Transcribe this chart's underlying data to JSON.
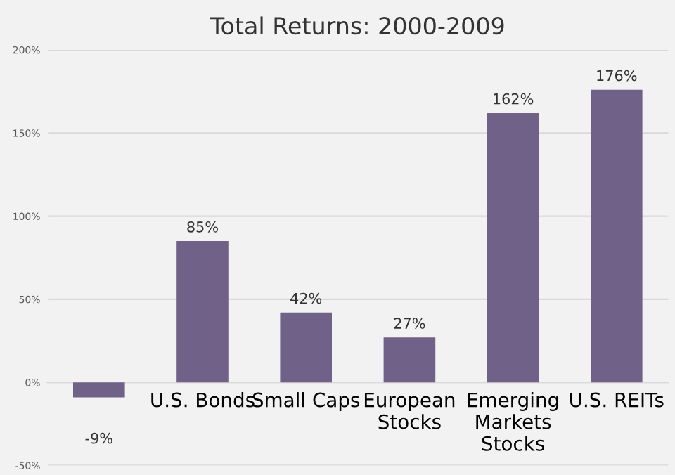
{
  "chart_data": {
    "type": "bar",
    "title": "Total Returns: 2000-2009",
    "categories": [
      null,
      "U.S. Bonds",
      "Small Caps",
      "European\nStocks",
      "Emerging\nMarkets\nStocks",
      "U.S. REITs"
    ],
    "values": [
      -9,
      85,
      42,
      27,
      162,
      176
    ],
    "value_labels": [
      "-9%",
      "85%",
      "42%",
      "27%",
      "162%",
      "176%"
    ],
    "color": "#706189",
    "ylim": [
      -50,
      200
    ],
    "yticks": [
      {
        "value": -50,
        "label": "-50%"
      },
      {
        "value": 0,
        "label": "0%"
      },
      {
        "value": 50,
        "label": "50%"
      },
      {
        "value": 100,
        "label": "100%"
      },
      {
        "value": 150,
        "label": "150%"
      },
      {
        "value": 200,
        "label": "200%"
      }
    ],
    "grid": "y",
    "legend": false
  }
}
